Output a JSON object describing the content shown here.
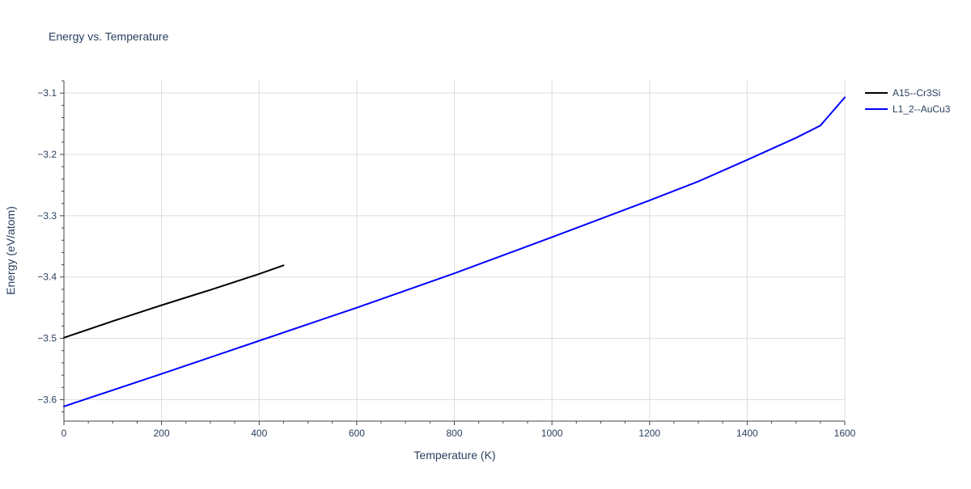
{
  "chart_data": {
    "type": "line",
    "title": "Energy vs. Temperature",
    "xlabel": "Temperature (K)",
    "ylabel": "Energy (eV/atom)",
    "xlim": [
      0,
      1600
    ],
    "ylim": [
      -3.635,
      -3.08
    ],
    "x_ticks": [
      0,
      200,
      400,
      600,
      800,
      1000,
      1200,
      1400,
      1600
    ],
    "x_tick_labels": [
      "0",
      "200",
      "400",
      "600",
      "800",
      "1000",
      "1200",
      "1400",
      "1600"
    ],
    "y_ticks": [
      -3.6,
      -3.5,
      -3.4,
      -3.3,
      -3.2,
      -3.1
    ],
    "y_tick_labels": [
      "−3.6",
      "−3.5",
      "−3.4",
      "−3.3",
      "−3.2",
      "−3.1"
    ],
    "grid": true,
    "legend_position": "top-right, outside plot",
    "series": [
      {
        "name": "A15--Cr3Si",
        "color": "#000000",
        "x": [
          0,
          100,
          200,
          300,
          400,
          450
        ],
        "y": [
          -3.499,
          -3.472,
          -3.446,
          -3.421,
          -3.395,
          -3.381
        ]
      },
      {
        "name": "L1_2--AuCu3",
        "color": "#0000ff",
        "x": [
          0,
          200,
          400,
          600,
          800,
          1000,
          1200,
          1300,
          1400,
          1500,
          1550,
          1600
        ],
        "y": [
          -3.611,
          -3.558,
          -3.504,
          -3.45,
          -3.394,
          -3.335,
          -3.275,
          -3.244,
          -3.209,
          -3.173,
          -3.153,
          -3.107
        ]
      }
    ]
  }
}
